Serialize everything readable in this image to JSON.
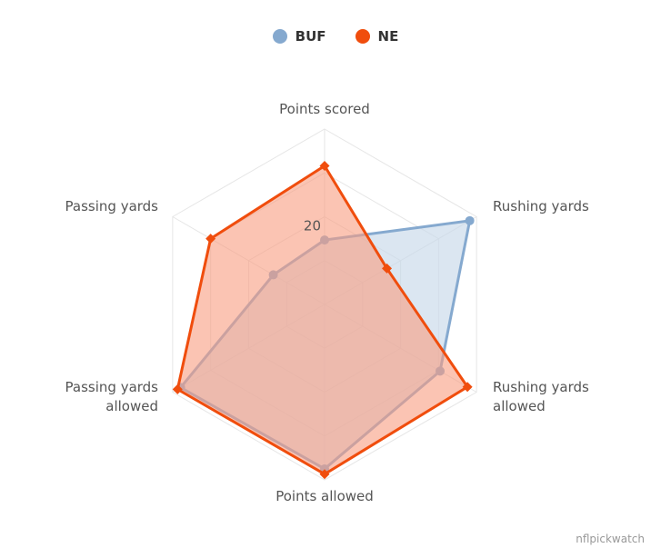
{
  "legend": {
    "buf_label": "BUF",
    "ne_label": "NE",
    "buf_color": "#85a9cf",
    "ne_color": "#f04d0d"
  },
  "chart_data": {
    "type": "radar",
    "categories": [
      "Points scored",
      "Rushing yards",
      "Rushing yards allowed",
      "Points allowed",
      "Passing yards allowed",
      "Passing yards"
    ],
    "category_lines": [
      [
        "Points scored"
      ],
      [
        "Rushing yards"
      ],
      [
        "Rushing yards",
        "allowed"
      ],
      [
        "Points allowed"
      ],
      [
        "Passing yards",
        "allowed"
      ],
      [
        "Passing yards"
      ]
    ],
    "ylim": [
      0,
      40
    ],
    "ticks": [
      20
    ],
    "tick_labels": [
      "20"
    ],
    "grid": true,
    "legend_position": "top-center",
    "series": [
      {
        "name": "BUF",
        "color": "#85a9cf",
        "fill": "#c8d9ea",
        "values": [
          14.7,
          38.2,
          30.4,
          37.5,
          37.9,
          13.5
        ]
      },
      {
        "name": "NE",
        "color": "#f04d0d",
        "fill": "#f89d80",
        "values": [
          31.6,
          16.4,
          37.6,
          38.7,
          38.7,
          30.0
        ]
      }
    ]
  },
  "credit": "nflpickwatch"
}
